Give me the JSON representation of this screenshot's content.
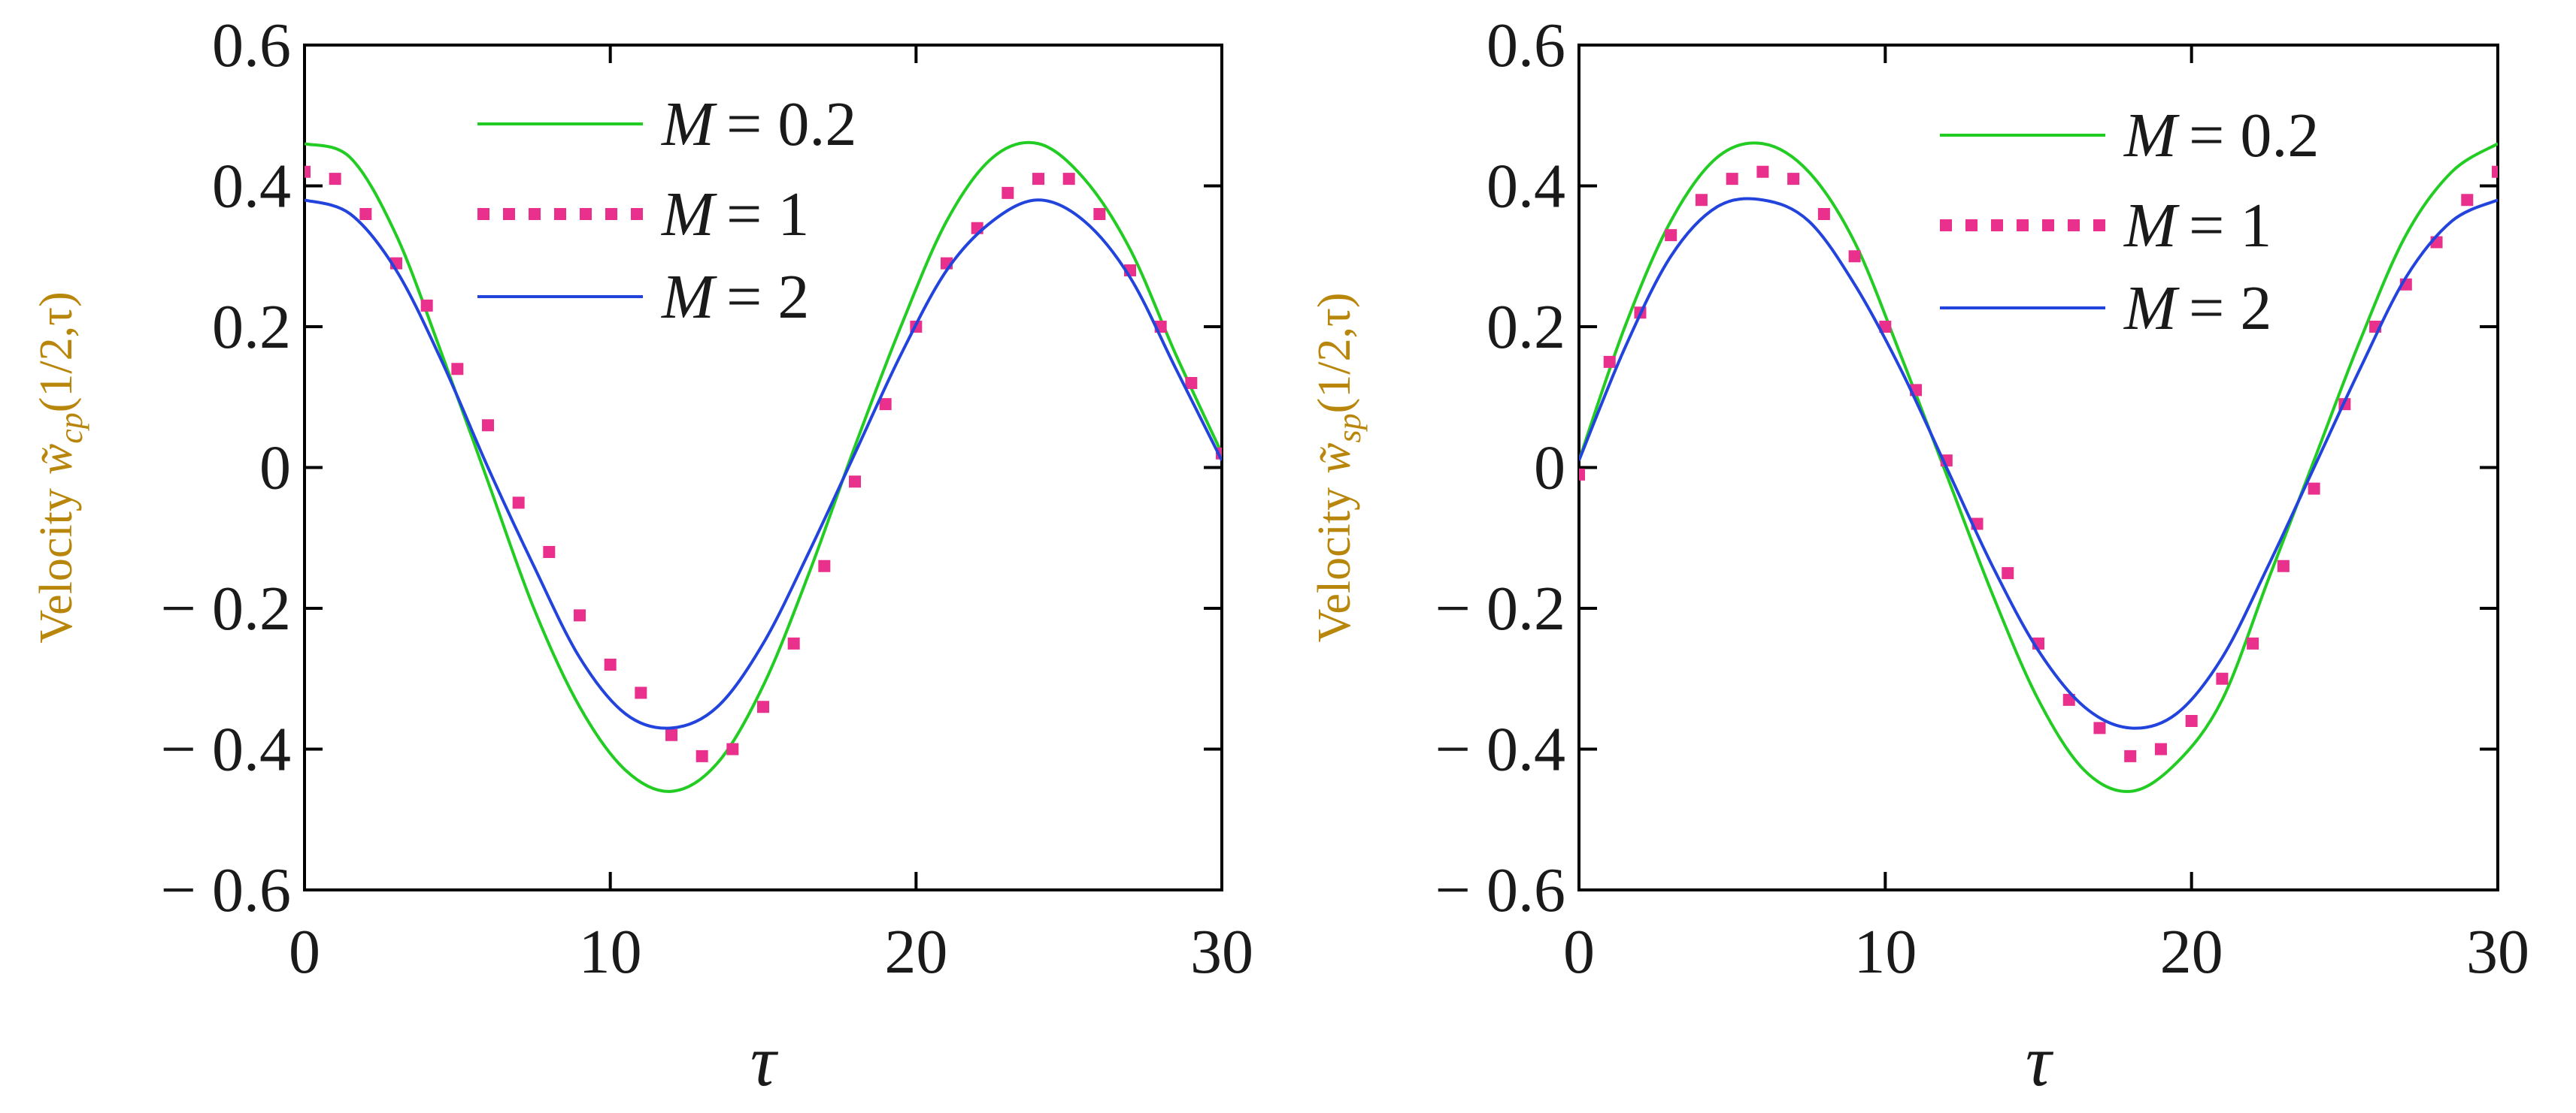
{
  "chart_data": [
    {
      "type": "line",
      "panel": "left",
      "xlabel": "τ",
      "ylabel_text": "Velocity",
      "ylabel_symbol": "w̃",
      "ylabel_sub": "cp",
      "ylabel_args": "(1/2,τ)",
      "xlim": [
        0,
        30
      ],
      "ylim": [
        -0.6,
        0.6
      ],
      "xticks": [
        0,
        10,
        20,
        30
      ],
      "xtick_labels": [
        "0",
        "10",
        "20",
        "30"
      ],
      "yticks": [
        0.6,
        0.4,
        0.2,
        0,
        -0.2,
        -0.4,
        -0.6
      ],
      "ytick_labels": [
        "0.6",
        "0.4",
        "0.2",
        "0",
        "− 0.2",
        "− 0.4",
        "− 0.6"
      ],
      "grid": false,
      "legend_position": "top-center",
      "series": [
        {
          "name": "M = 0.2",
          "legend_var": "M",
          "legend_eq": "= 0.2",
          "style": "solid",
          "color": "#22cc22",
          "x": [
            0,
            1.5,
            3,
            4.5,
            6,
            7.5,
            9,
            10.5,
            12,
            13.5,
            15,
            16.5,
            18,
            19.5,
            21,
            22.5,
            24,
            25.5,
            27,
            28.5,
            30
          ],
          "y": [
            0.46,
            0.44,
            0.33,
            0.16,
            -0.02,
            -0.2,
            -0.34,
            -0.43,
            -0.46,
            -0.42,
            -0.31,
            -0.15,
            0.03,
            0.2,
            0.35,
            0.44,
            0.46,
            0.41,
            0.31,
            0.16,
            0.02
          ]
        },
        {
          "name": "M = 1",
          "legend_var": "M",
          "legend_eq": "= 1",
          "style": "dotted",
          "color": "#e8308c",
          "x": [
            0,
            1,
            2,
            3,
            4,
            5,
            6,
            7,
            8,
            9,
            10,
            11,
            12,
            13,
            14,
            15,
            16,
            17,
            18,
            19,
            20,
            21,
            22,
            23,
            24,
            25,
            26,
            27,
            28,
            29,
            30
          ],
          "y": [
            0.42,
            0.41,
            0.36,
            0.29,
            0.23,
            0.14,
            0.06,
            -0.05,
            -0.12,
            -0.21,
            -0.28,
            -0.32,
            -0.38,
            -0.41,
            -0.4,
            -0.34,
            -0.25,
            -0.14,
            -0.02,
            0.09,
            0.2,
            0.29,
            0.34,
            0.39,
            0.41,
            0.41,
            0.36,
            0.28,
            0.2,
            0.12,
            0.02
          ]
        },
        {
          "name": "M = 2",
          "legend_var": "M",
          "legend_eq": "= 2",
          "style": "solid",
          "color": "#2244dd",
          "x": [
            0,
            1.5,
            3,
            4.5,
            6,
            7.5,
            9,
            10.5,
            12,
            13.5,
            15,
            16.5,
            18,
            19.5,
            21,
            22.5,
            24,
            25.5,
            27,
            28.5,
            30
          ],
          "y": [
            0.38,
            0.36,
            0.28,
            0.15,
            0,
            -0.14,
            -0.27,
            -0.35,
            -0.37,
            -0.34,
            -0.25,
            -0.12,
            0.02,
            0.16,
            0.28,
            0.35,
            0.38,
            0.35,
            0.27,
            0.14,
            0.01
          ]
        }
      ]
    },
    {
      "type": "line",
      "panel": "right",
      "xlabel": "τ",
      "ylabel_text": "Velocity",
      "ylabel_symbol": "w̃",
      "ylabel_sub": "sp",
      "ylabel_args": "(1/2,τ)",
      "xlim": [
        0,
        30
      ],
      "ylim": [
        -0.6,
        0.6
      ],
      "xticks": [
        0,
        10,
        20,
        30
      ],
      "xtick_labels": [
        "0",
        "10",
        "20",
        "30"
      ],
      "yticks": [
        0.6,
        0.4,
        0.2,
        0,
        -0.2,
        -0.4,
        -0.6
      ],
      "ytick_labels": [
        "0.6",
        "0.4",
        "0.2",
        "0",
        "− 0.2",
        "− 0.4",
        "− 0.6"
      ],
      "grid": false,
      "legend_position": "top-right",
      "series": [
        {
          "name": "M = 0.2",
          "legend_var": "M",
          "legend_eq": "= 0.2",
          "style": "solid",
          "color": "#22cc22",
          "x": [
            0,
            1.5,
            3,
            4.5,
            6,
            7.5,
            9,
            10.5,
            12,
            13.5,
            15,
            16.5,
            18,
            19.5,
            21,
            22.5,
            24,
            25.5,
            27,
            28.5,
            30
          ],
          "y": [
            0.01,
            0.2,
            0.35,
            0.44,
            0.46,
            0.42,
            0.32,
            0.16,
            -0.01,
            -0.18,
            -0.33,
            -0.43,
            -0.46,
            -0.42,
            -0.33,
            -0.16,
            0.01,
            0.18,
            0.33,
            0.42,
            0.46
          ]
        },
        {
          "name": "M = 1",
          "legend_var": "M",
          "legend_eq": "= 1",
          "style": "dotted",
          "color": "#e8308c",
          "x": [
            0,
            1,
            2,
            3,
            4,
            5,
            6,
            7,
            8,
            9,
            10,
            11,
            12,
            13,
            14,
            15,
            16,
            17,
            18,
            19,
            20,
            21,
            22,
            23,
            24,
            25,
            26,
            27,
            28,
            29,
            30
          ],
          "y": [
            -0.01,
            0.15,
            0.22,
            0.33,
            0.38,
            0.41,
            0.42,
            0.41,
            0.36,
            0.3,
            0.2,
            0.11,
            0.01,
            -0.08,
            -0.15,
            -0.25,
            -0.33,
            -0.37,
            -0.41,
            -0.4,
            -0.36,
            -0.3,
            -0.25,
            -0.14,
            -0.03,
            0.09,
            0.2,
            0.26,
            0.32,
            0.38,
            0.42
          ]
        },
        {
          "name": "M = 2",
          "legend_var": "M",
          "legend_eq": "= 2",
          "style": "solid",
          "color": "#2244dd",
          "x": [
            0,
            1.5,
            3,
            4.5,
            6,
            7.5,
            9,
            10.5,
            12,
            13.5,
            15,
            16.5,
            18,
            19.5,
            21,
            22.5,
            24,
            25.5,
            27,
            28.5,
            30
          ],
          "y": [
            0.01,
            0.17,
            0.3,
            0.37,
            0.38,
            0.35,
            0.26,
            0.14,
            0,
            -0.14,
            -0.26,
            -0.34,
            -0.37,
            -0.35,
            -0.27,
            -0.14,
            0,
            0.14,
            0.27,
            0.35,
            0.38
          ]
        }
      ]
    }
  ]
}
